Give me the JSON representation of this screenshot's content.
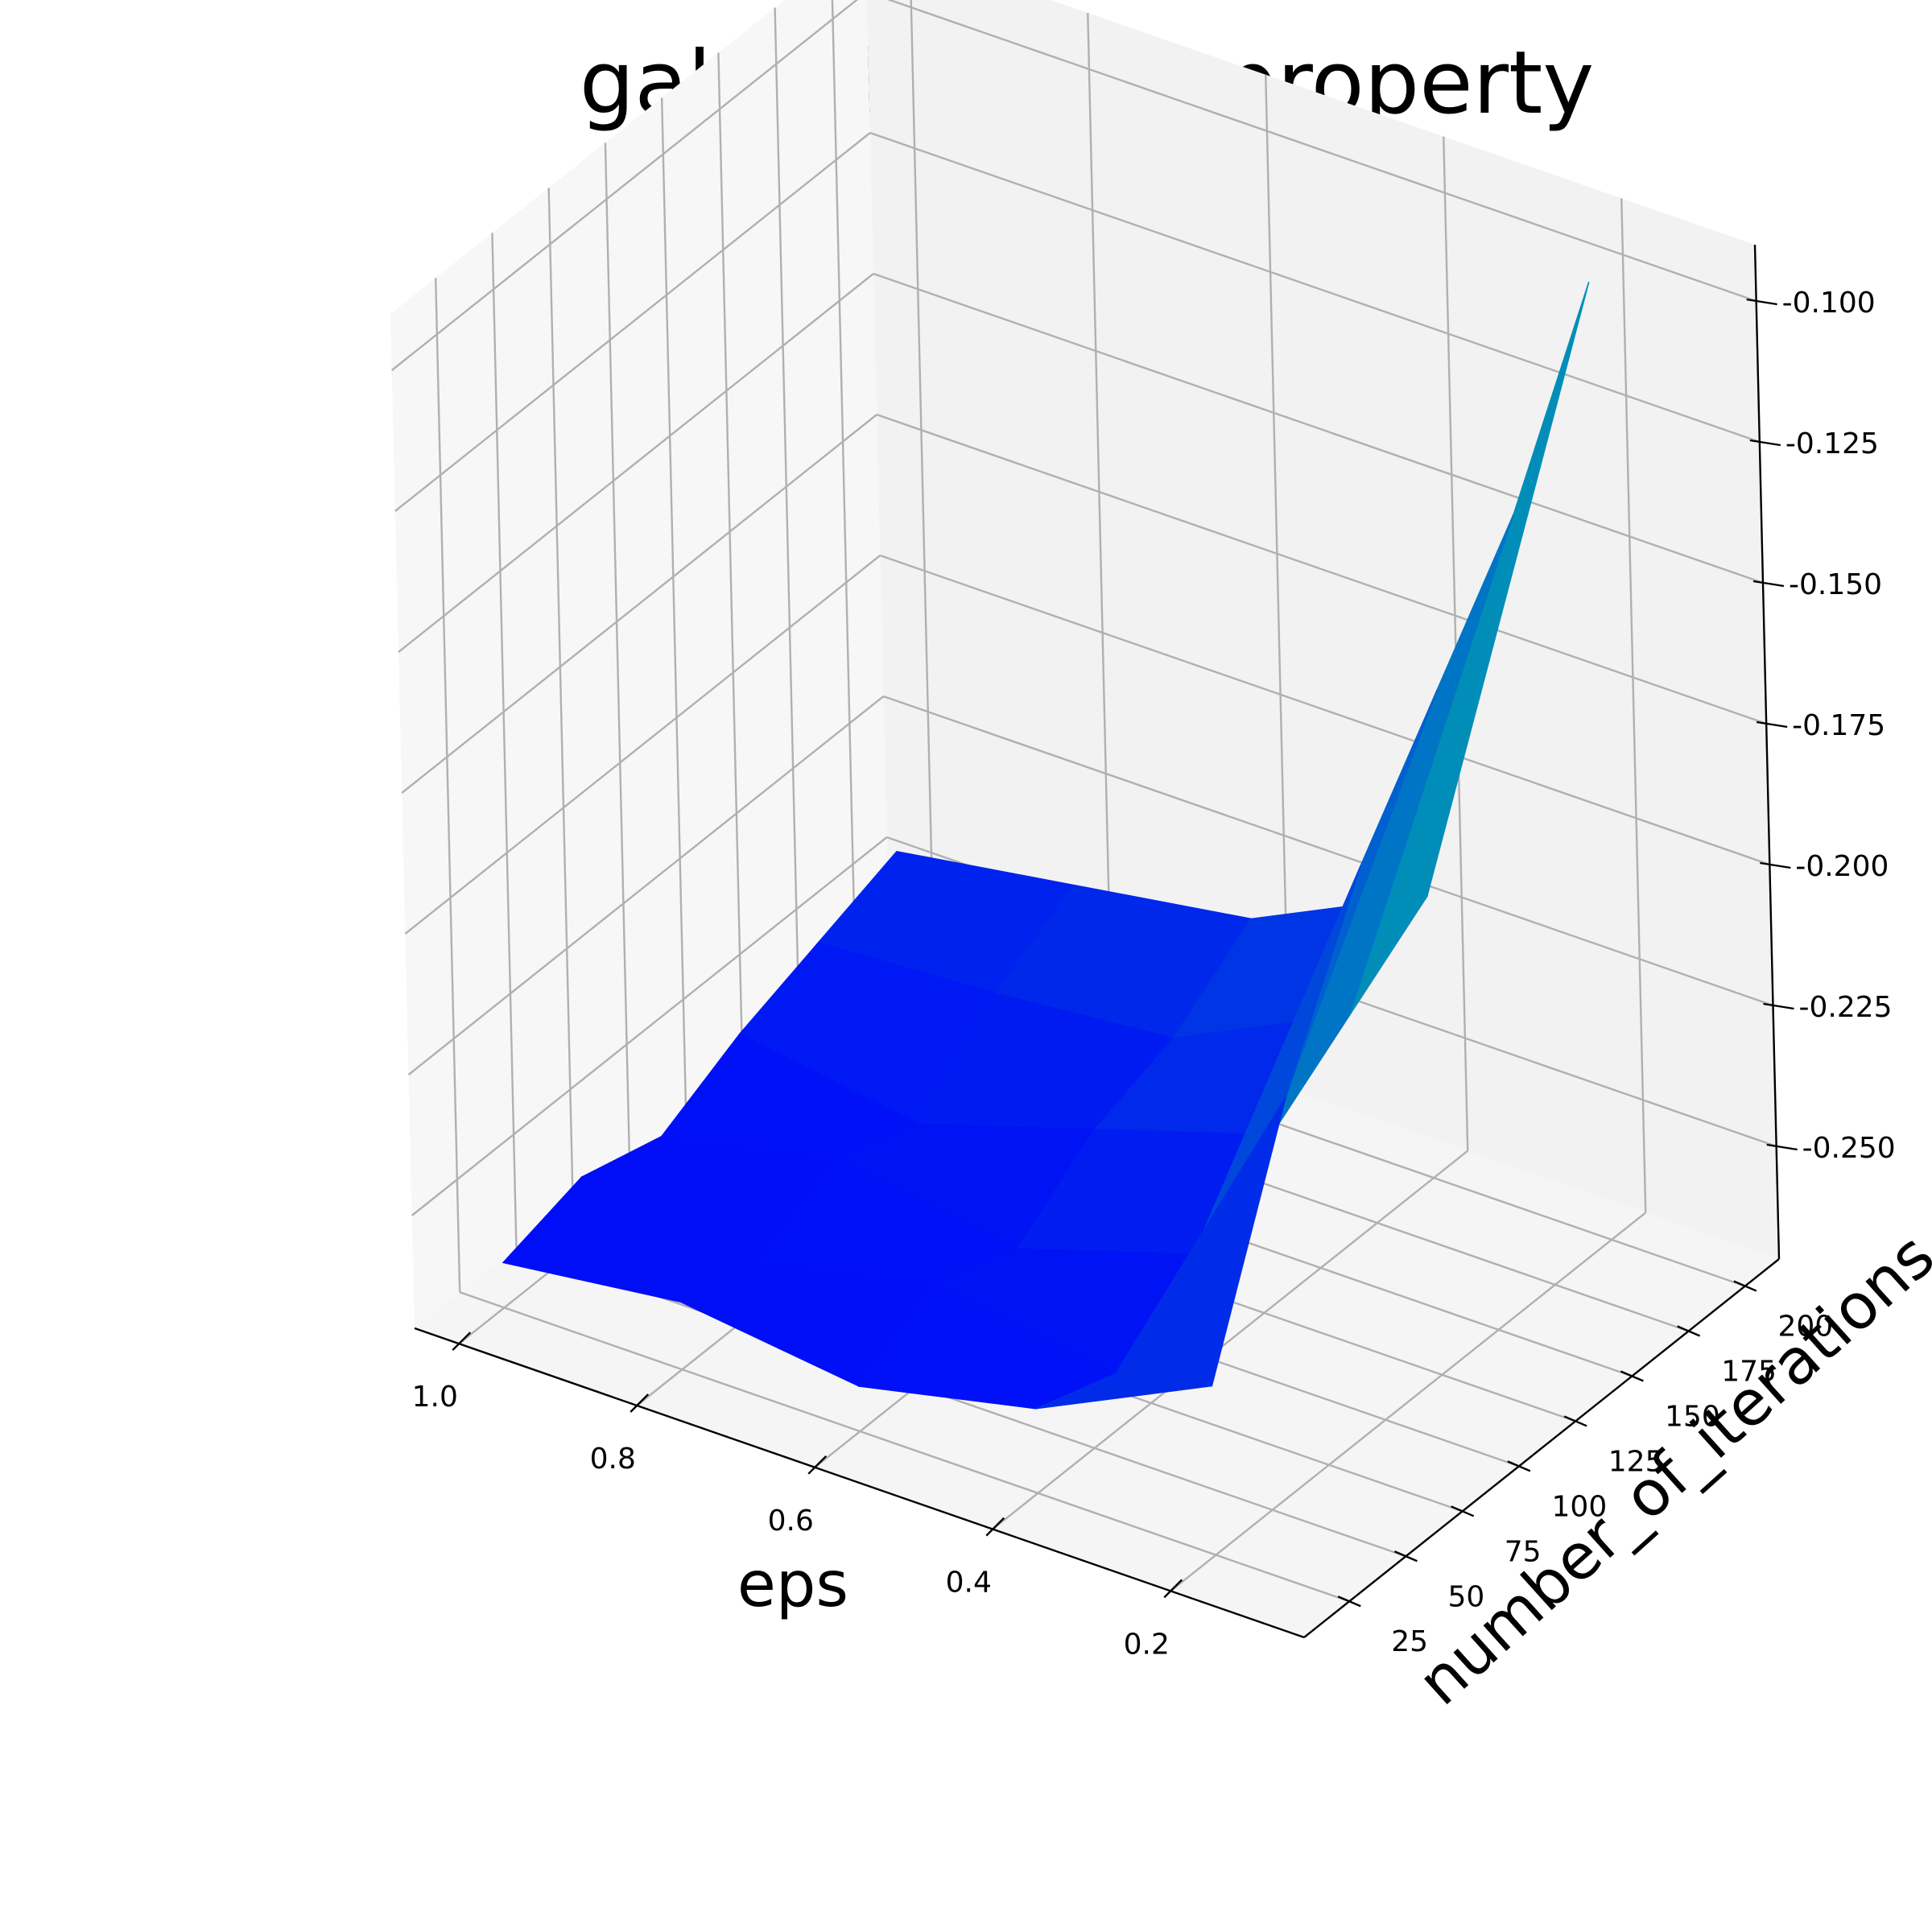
{
  "chart_data": {
    "type": "surface3d",
    "title": "gabriel_graph_property",
    "xlabel": "eps",
    "ylabel": "number_of_iterations",
    "zlabel": "",
    "x_ticks": [
      "1.0",
      "0.8",
      "0.6",
      "0.4",
      "0.2"
    ],
    "x_tick_values": [
      1.0,
      0.8,
      0.6,
      0.4,
      0.2
    ],
    "y_ticks": [
      "25",
      "50",
      "75",
      "100",
      "125",
      "150",
      "175",
      "200"
    ],
    "y_tick_values": [
      25,
      50,
      75,
      100,
      125,
      150,
      175,
      200
    ],
    "z_ticks": [
      "-0.100",
      "-0.125",
      "-0.150",
      "-0.175",
      "-0.200",
      "-0.225",
      "-0.250"
    ],
    "z_tick_values": [
      -0.1,
      -0.125,
      -0.15,
      -0.175,
      -0.2,
      -0.225,
      -0.25
    ],
    "xlim": [
      0.05,
      1.05
    ],
    "ylim": [
      5,
      215
    ],
    "zlim": [
      -0.27,
      -0.09
    ],
    "colormap": "winter",
    "colors": {
      "low": "#0000ff",
      "mid": "#00a0a8",
      "high": "#00ff80",
      "pane": "#f2f2f2",
      "grid": "#b0b0b0"
    },
    "grid": true,
    "surface": {
      "eps": [
        1.0,
        0.8,
        0.6,
        0.4,
        0.2
      ],
      "number_of_iterations": [
        25,
        60,
        95,
        130,
        165,
        200
      ],
      "z": [
        [
          -0.262,
          -0.258,
          -0.262,
          -0.255,
          -0.25,
          -0.245
        ],
        [
          -0.258,
          -0.262,
          -0.255,
          -0.26,
          -0.248,
          -0.24
        ],
        [
          -0.262,
          -0.255,
          -0.26,
          -0.25,
          -0.245,
          -0.235
        ],
        [
          -0.255,
          -0.26,
          -0.25,
          -0.24,
          -0.23,
          -0.22
        ],
        [
          -0.24,
          -0.2,
          -0.17,
          -0.15,
          -0.13,
          -0.1
        ]
      ]
    }
  }
}
